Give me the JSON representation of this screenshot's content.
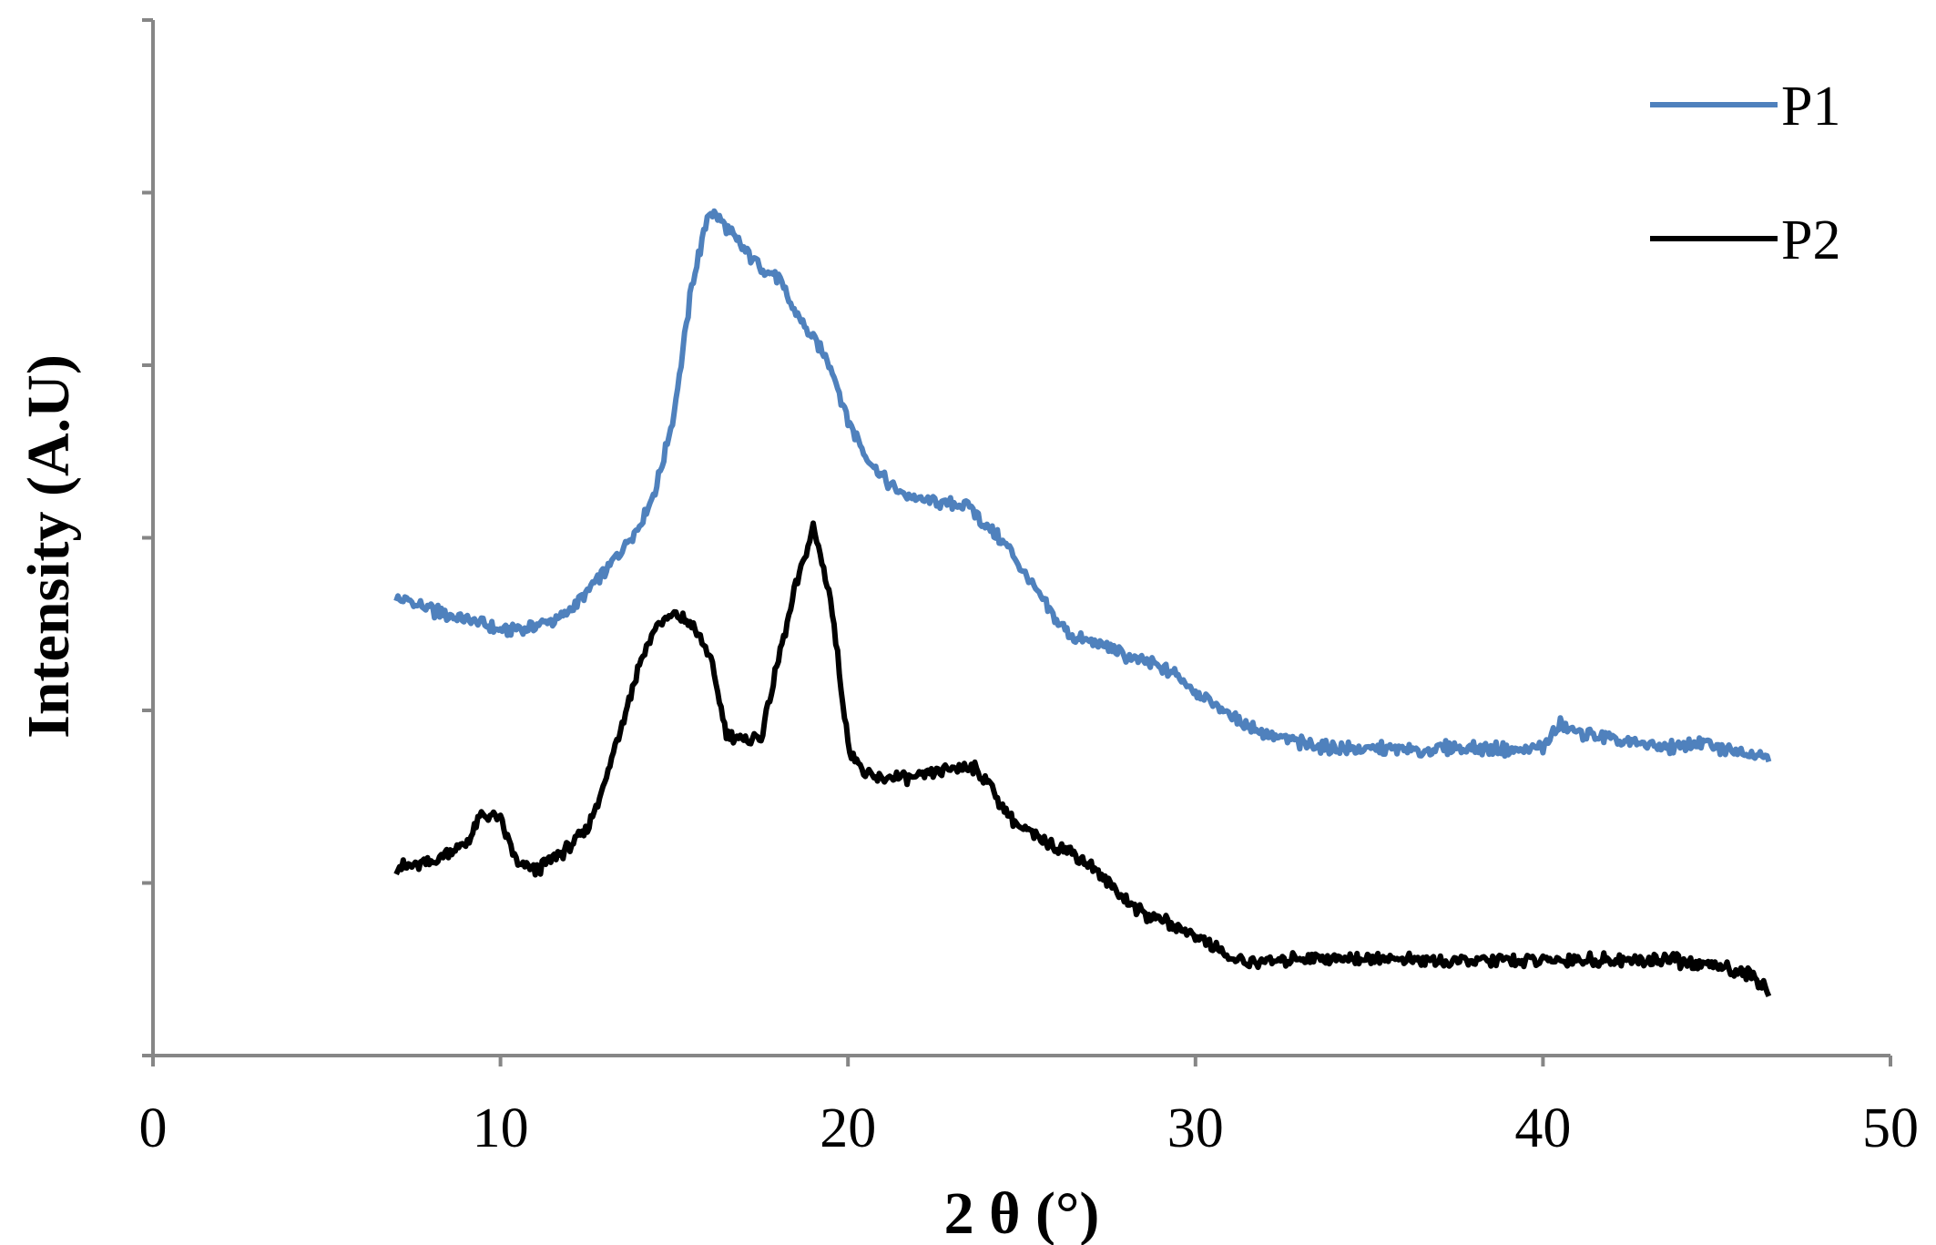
{
  "chart_data": {
    "type": "line",
    "title": "",
    "xlabel": "2 θ (°)",
    "ylabel": "Intensity (A.U)",
    "xlim": [
      0,
      50
    ],
    "ylim": [
      0,
      6
    ],
    "x_ticks": [
      "0",
      "10",
      "20",
      "30",
      "40",
      "50"
    ],
    "y_ticks_count": 7,
    "y_tick_labels_shown": false,
    "grid": false,
    "legend_position": "top-right",
    "series": [
      {
        "name": "P1",
        "color": "#4f81bd",
        "points": [
          [
            7.0,
            2.64
          ],
          [
            7.5,
            2.62
          ],
          [
            8.0,
            2.58
          ],
          [
            8.5,
            2.55
          ],
          [
            9.0,
            2.53
          ],
          [
            9.5,
            2.5
          ],
          [
            10.0,
            2.46
          ],
          [
            10.5,
            2.47
          ],
          [
            11.0,
            2.49
          ],
          [
            11.5,
            2.52
          ],
          [
            12.0,
            2.58
          ],
          [
            12.5,
            2.69
          ],
          [
            13.0,
            2.8
          ],
          [
            13.5,
            2.93
          ],
          [
            14.0,
            3.08
          ],
          [
            14.5,
            3.3
          ],
          [
            15.0,
            3.73
          ],
          [
            15.5,
            4.45
          ],
          [
            16.0,
            4.9
          ],
          [
            16.5,
            4.8
          ],
          [
            17.0,
            4.67
          ],
          [
            17.5,
            4.57
          ],
          [
            18.0,
            4.5
          ],
          [
            18.5,
            4.3
          ],
          [
            19.0,
            4.15
          ],
          [
            19.5,
            4.0
          ],
          [
            20.0,
            3.68
          ],
          [
            20.5,
            3.48
          ],
          [
            21.0,
            3.35
          ],
          [
            21.5,
            3.26
          ],
          [
            22.0,
            3.22
          ],
          [
            22.5,
            3.21
          ],
          [
            23.0,
            3.2
          ],
          [
            23.5,
            3.18
          ],
          [
            24.0,
            3.06
          ],
          [
            24.5,
            2.97
          ],
          [
            25.0,
            2.82
          ],
          [
            25.5,
            2.66
          ],
          [
            26.0,
            2.52
          ],
          [
            26.5,
            2.42
          ],
          [
            27.0,
            2.4
          ],
          [
            27.5,
            2.36
          ],
          [
            28.0,
            2.32
          ],
          [
            28.5,
            2.28
          ],
          [
            29.0,
            2.25
          ],
          [
            29.5,
            2.2
          ],
          [
            30.0,
            2.11
          ],
          [
            30.5,
            2.04
          ],
          [
            31.0,
            1.97
          ],
          [
            31.5,
            1.91
          ],
          [
            32.0,
            1.87
          ],
          [
            32.5,
            1.84
          ],
          [
            33.0,
            1.81
          ],
          [
            33.5,
            1.79
          ],
          [
            34.0,
            1.78
          ],
          [
            34.5,
            1.78
          ],
          [
            35.0,
            1.77
          ],
          [
            35.5,
            1.78
          ],
          [
            36.0,
            1.77
          ],
          [
            36.5,
            1.76
          ],
          [
            37.0,
            1.78
          ],
          [
            37.5,
            1.79
          ],
          [
            38.0,
            1.78
          ],
          [
            38.5,
            1.78
          ],
          [
            39.0,
            1.77
          ],
          [
            39.5,
            1.77
          ],
          [
            40.0,
            1.79
          ],
          [
            40.5,
            1.92
          ],
          [
            41.0,
            1.87
          ],
          [
            41.5,
            1.86
          ],
          [
            42.0,
            1.83
          ],
          [
            42.5,
            1.81
          ],
          [
            43.0,
            1.8
          ],
          [
            43.5,
            1.79
          ],
          [
            44.0,
            1.79
          ],
          [
            44.5,
            1.82
          ],
          [
            45.0,
            1.78
          ],
          [
            45.5,
            1.77
          ],
          [
            46.0,
            1.75
          ],
          [
            46.5,
            1.74
          ]
        ]
      },
      {
        "name": "P2",
        "color": "#000000",
        "points": [
          [
            7.0,
            1.09
          ],
          [
            7.5,
            1.1
          ],
          [
            8.0,
            1.12
          ],
          [
            8.5,
            1.17
          ],
          [
            9.0,
            1.23
          ],
          [
            9.5,
            1.4
          ],
          [
            10.0,
            1.37
          ],
          [
            10.5,
            1.11
          ],
          [
            11.0,
            1.07
          ],
          [
            11.5,
            1.14
          ],
          [
            12.0,
            1.21
          ],
          [
            12.5,
            1.32
          ],
          [
            13.0,
            1.58
          ],
          [
            13.5,
            1.93
          ],
          [
            14.0,
            2.27
          ],
          [
            14.5,
            2.5
          ],
          [
            15.0,
            2.55
          ],
          [
            15.5,
            2.5
          ],
          [
            16.0,
            2.33
          ],
          [
            16.5,
            1.87
          ],
          [
            17.0,
            1.82
          ],
          [
            17.5,
            1.84
          ],
          [
            18.0,
            2.3
          ],
          [
            18.5,
            2.72
          ],
          [
            19.0,
            3.06
          ],
          [
            19.5,
            2.65
          ],
          [
            20.0,
            1.8
          ],
          [
            20.5,
            1.62
          ],
          [
            21.0,
            1.6
          ],
          [
            21.5,
            1.62
          ],
          [
            22.0,
            1.6
          ],
          [
            22.5,
            1.64
          ],
          [
            23.0,
            1.66
          ],
          [
            23.5,
            1.68
          ],
          [
            24.0,
            1.6
          ],
          [
            24.5,
            1.42
          ],
          [
            25.0,
            1.32
          ],
          [
            25.5,
            1.26
          ],
          [
            26.0,
            1.22
          ],
          [
            26.5,
            1.17
          ],
          [
            27.0,
            1.1
          ],
          [
            27.5,
            1.0
          ],
          [
            28.0,
            0.9
          ],
          [
            28.5,
            0.82
          ],
          [
            29.0,
            0.79
          ],
          [
            29.5,
            0.74
          ],
          [
            30.0,
            0.7
          ],
          [
            30.5,
            0.64
          ],
          [
            31.0,
            0.56
          ],
          [
            31.5,
            0.54
          ],
          [
            32.0,
            0.55
          ],
          [
            32.5,
            0.55
          ],
          [
            33.0,
            0.57
          ],
          [
            33.5,
            0.57
          ],
          [
            34.0,
            0.56
          ],
          [
            34.5,
            0.57
          ],
          [
            35.0,
            0.56
          ],
          [
            35.5,
            0.57
          ],
          [
            36.0,
            0.55
          ],
          [
            36.5,
            0.55
          ],
          [
            37.0,
            0.55
          ],
          [
            37.5,
            0.54
          ],
          [
            38.0,
            0.55
          ],
          [
            38.5,
            0.55
          ],
          [
            39.0,
            0.55
          ],
          [
            39.5,
            0.55
          ],
          [
            40.0,
            0.55
          ],
          [
            40.5,
            0.55
          ],
          [
            41.0,
            0.56
          ],
          [
            41.5,
            0.55
          ],
          [
            42.0,
            0.56
          ],
          [
            42.5,
            0.55
          ],
          [
            43.0,
            0.55
          ],
          [
            43.5,
            0.56
          ],
          [
            44.0,
            0.54
          ],
          [
            44.5,
            0.52
          ],
          [
            45.0,
            0.53
          ],
          [
            45.5,
            0.5
          ],
          [
            46.0,
            0.46
          ],
          [
            46.5,
            0.38
          ]
        ]
      }
    ]
  }
}
